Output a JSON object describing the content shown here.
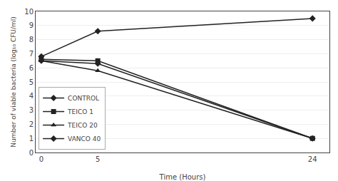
{
  "chart_data": {
    "type": "line",
    "x_label": "Time (Hours)",
    "y_label": "Number of viable bacteria (log₁₀ CFU/ml)",
    "series": [
      {
        "name": "CONTROL",
        "x": [
          0,
          5,
          24
        ],
        "values": [
          6.8,
          8.6,
          9.5
        ],
        "color": "#222222",
        "marker": "diamond"
      },
      {
        "name": "TEICO 1",
        "x": [
          0,
          5,
          24
        ],
        "values": [
          6.6,
          6.5,
          1.0
        ],
        "color": "#222222",
        "marker": "square"
      },
      {
        "name": "TEICO 20",
        "x": [
          0,
          5,
          24
        ],
        "values": [
          6.5,
          5.8,
          1.0
        ],
        "color": "#222222",
        "marker": "triangle-up"
      },
      {
        "name": "VANCO 40",
        "x": [
          0,
          5,
          24
        ],
        "values": [
          6.5,
          6.3,
          1.0
        ],
        "color": "#222222",
        "marker": "diamond"
      }
    ],
    "xlim": [
      -0.5,
      25.5
    ],
    "ylim": [
      0,
      10
    ],
    "xticks": [
      0,
      5,
      24
    ],
    "yticks": [
      0,
      1,
      2,
      3,
      4,
      5,
      6,
      7,
      8,
      9,
      10
    ],
    "grid": true,
    "legend": "lower left"
  }
}
